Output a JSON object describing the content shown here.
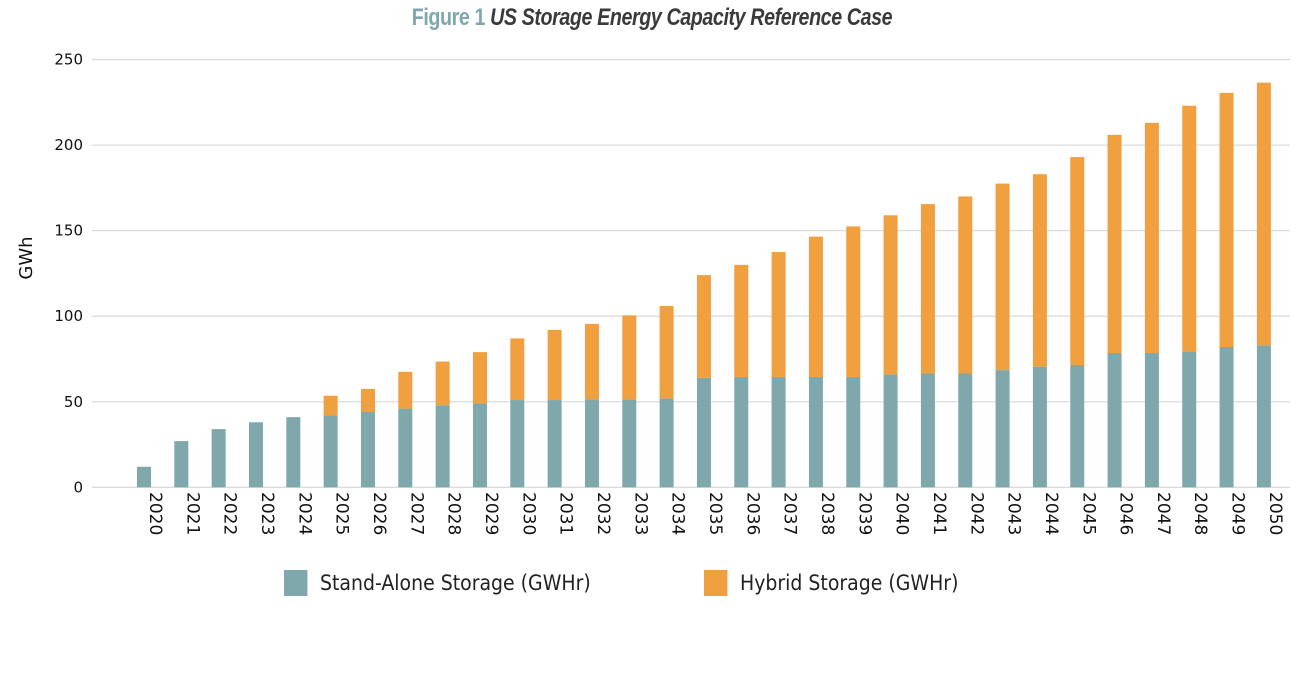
{
  "title": {
    "figure_label": "Figure 1",
    "text": "US Storage Energy Capacity Reference Case"
  },
  "chart_data": {
    "type": "bar",
    "stacked": true,
    "title": "Figure 1 US Storage Energy Capacity Reference Case",
    "xlabel": "",
    "ylabel": "GWh",
    "ylim": [
      0,
      250
    ],
    "yticks": [
      0,
      50,
      100,
      150,
      200,
      250
    ],
    "grid": true,
    "legend_placement": "bottom",
    "categories": [
      "2020",
      "2021",
      "2022",
      "2023",
      "2024",
      "2025",
      "2026",
      "2027",
      "2028",
      "2029",
      "2030",
      "2031",
      "2032",
      "2033",
      "2034",
      "2035",
      "2036",
      "2037",
      "2038",
      "2039",
      "2040",
      "2041",
      "2042",
      "2043",
      "2044",
      "2045",
      "2046",
      "2047",
      "2048",
      "2049",
      "2050"
    ],
    "series": [
      {
        "name": "Stand-Alone Storage (GWHr)",
        "color": "#7fa8ad",
        "values": [
          12,
          27,
          34,
          38,
          41,
          42,
          44,
          46,
          48,
          49,
          51,
          51,
          51.5,
          51.5,
          52,
          64,
          64.5,
          64.5,
          64.5,
          64.5,
          66,
          66.5,
          66.5,
          68.5,
          70.5,
          71.5,
          78.5,
          78.5,
          79.5,
          82,
          83
        ]
      },
      {
        "name": "Hybrid Storage (GWHr)",
        "color": "#f0a03e",
        "values": [
          0,
          0,
          0,
          0,
          0,
          11.5,
          13.5,
          21.5,
          25.5,
          30,
          36,
          41,
          44,
          49,
          54,
          60,
          65.5,
          73,
          82,
          88,
          93,
          99,
          103.5,
          109,
          112.5,
          121.5,
          127.5,
          134.5,
          143.5,
          148.5,
          153.5
        ]
      }
    ]
  }
}
